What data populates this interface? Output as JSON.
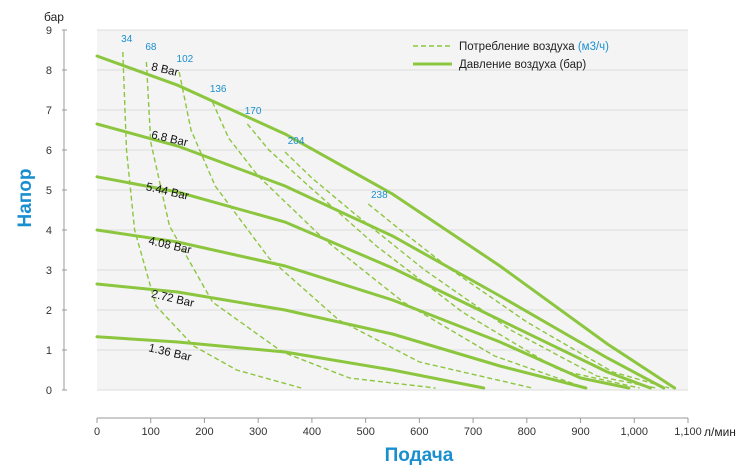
{
  "colors": {
    "curve": "#8cc63f",
    "accent": "#1a8fd0",
    "grid": "#e3e3e3",
    "plot_bg": "#f4f4f4",
    "text": "#333333"
  },
  "chart_data": {
    "type": "line",
    "title": "",
    "xlabel": "Подача",
    "ylabel": "Напор",
    "x_unit": "л/мин",
    "y_unit": "бар",
    "xlim": [
      0,
      1100
    ],
    "ylim": [
      0,
      9
    ],
    "x_ticks": [
      "0",
      "100",
      "200",
      "300",
      "400",
      "500",
      "600",
      "700",
      "800",
      "900",
      "1,000",
      "1,100"
    ],
    "y_ticks": [
      "0",
      "1",
      "2",
      "3",
      "4",
      "5",
      "6",
      "7",
      "8",
      "9"
    ],
    "legend": {
      "position": "top-right",
      "air_consumption": {
        "text": "Потребление воздуха ",
        "unit": "(м3/ч)"
      },
      "air_pressure": {
        "text": "Давление воздуха (бар)"
      }
    },
    "pressure_series": [
      {
        "name": "8 Bar",
        "label_x": 100,
        "label_y": 8.0,
        "points": [
          [
            0,
            8.35
          ],
          [
            150,
            7.62
          ],
          [
            350,
            6.4
          ],
          [
            550,
            4.9
          ],
          [
            750,
            3.1
          ],
          [
            950,
            1.15
          ],
          [
            1075,
            0.05
          ]
        ]
      },
      {
        "name": "6.8 Bar",
        "label_x": 100,
        "label_y": 6.3,
        "points": [
          [
            0,
            6.65
          ],
          [
            150,
            6.1
          ],
          [
            350,
            5.1
          ],
          [
            550,
            3.85
          ],
          [
            750,
            2.35
          ],
          [
            950,
            0.8
          ],
          [
            1055,
            0.05
          ]
        ]
      },
      {
        "name": "5.44 Bar",
        "label_x": 90,
        "label_y": 5.0,
        "points": [
          [
            0,
            5.33
          ],
          [
            150,
            4.95
          ],
          [
            350,
            4.2
          ],
          [
            550,
            3.05
          ],
          [
            750,
            1.75
          ],
          [
            950,
            0.45
          ],
          [
            1030,
            0.05
          ]
        ]
      },
      {
        "name": "4.08 Bar",
        "label_x": 95,
        "label_y": 3.65,
        "points": [
          [
            0,
            4.0
          ],
          [
            150,
            3.7
          ],
          [
            350,
            3.1
          ],
          [
            550,
            2.25
          ],
          [
            750,
            1.2
          ],
          [
            900,
            0.3
          ],
          [
            990,
            0.05
          ]
        ]
      },
      {
        "name": "2.72 Bar",
        "label_x": 100,
        "label_y": 2.32,
        "points": [
          [
            0,
            2.65
          ],
          [
            150,
            2.45
          ],
          [
            350,
            2.0
          ],
          [
            550,
            1.4
          ],
          [
            750,
            0.6
          ],
          [
            910,
            0.05
          ]
        ]
      },
      {
        "name": "1.36 Bar",
        "label_x": 95,
        "label_y": 0.97,
        "points": [
          [
            0,
            1.33
          ],
          [
            150,
            1.2
          ],
          [
            350,
            0.95
          ],
          [
            550,
            0.5
          ],
          [
            720,
            0.05
          ]
        ]
      }
    ],
    "air_series": [
      {
        "name": "34",
        "label_x": 45,
        "label_y": 8.7,
        "points": [
          [
            48,
            8.45
          ],
          [
            55,
            6.0
          ],
          [
            70,
            4.0
          ],
          [
            110,
            2.1
          ],
          [
            180,
            1.1
          ],
          [
            260,
            0.5
          ],
          [
            380,
            0.05
          ]
        ]
      },
      {
        "name": "68",
        "label_x": 90,
        "label_y": 8.5,
        "points": [
          [
            92,
            8.2
          ],
          [
            100,
            6.2
          ],
          [
            135,
            4.1
          ],
          [
            215,
            2.2
          ],
          [
            345,
            0.95
          ],
          [
            470,
            0.3
          ],
          [
            630,
            0.05
          ]
        ]
      },
      {
        "name": "102",
        "label_x": 148,
        "label_y": 8.2,
        "points": [
          [
            153,
            7.95
          ],
          [
            175,
            6.5
          ],
          [
            220,
            5.1
          ],
          [
            320,
            3.3
          ],
          [
            450,
            1.75
          ],
          [
            600,
            0.7
          ],
          [
            810,
            0.05
          ]
        ]
      },
      {
        "name": "136",
        "label_x": 210,
        "label_y": 7.45,
        "points": [
          [
            215,
            7.2
          ],
          [
            245,
            6.3
          ],
          [
            300,
            5.35
          ],
          [
            420,
            3.8
          ],
          [
            570,
            2.2
          ],
          [
            740,
            0.85
          ],
          [
            910,
            0.05
          ]
        ]
      },
      {
        "name": "170",
        "label_x": 275,
        "label_y": 6.9,
        "points": [
          [
            280,
            6.65
          ],
          [
            320,
            6.0
          ],
          [
            390,
            5.15
          ],
          [
            520,
            3.6
          ],
          [
            680,
            1.95
          ],
          [
            860,
            0.5
          ],
          [
            1010,
            0.05
          ]
        ]
      },
      {
        "name": "204",
        "label_x": 355,
        "label_y": 6.15,
        "points": [
          [
            350,
            5.95
          ],
          [
            400,
            5.3
          ],
          [
            480,
            4.4
          ],
          [
            610,
            3.0
          ],
          [
            770,
            1.5
          ],
          [
            930,
            0.35
          ],
          [
            1040,
            0.05
          ]
        ]
      },
      {
        "name": "238",
        "label_x": 510,
        "label_y": 4.8,
        "points": [
          [
            505,
            4.65
          ],
          [
            560,
            4.05
          ],
          [
            660,
            3.0
          ],
          [
            800,
            1.7
          ],
          [
            960,
            0.45
          ],
          [
            1065,
            0.05
          ]
        ]
      }
    ]
  }
}
